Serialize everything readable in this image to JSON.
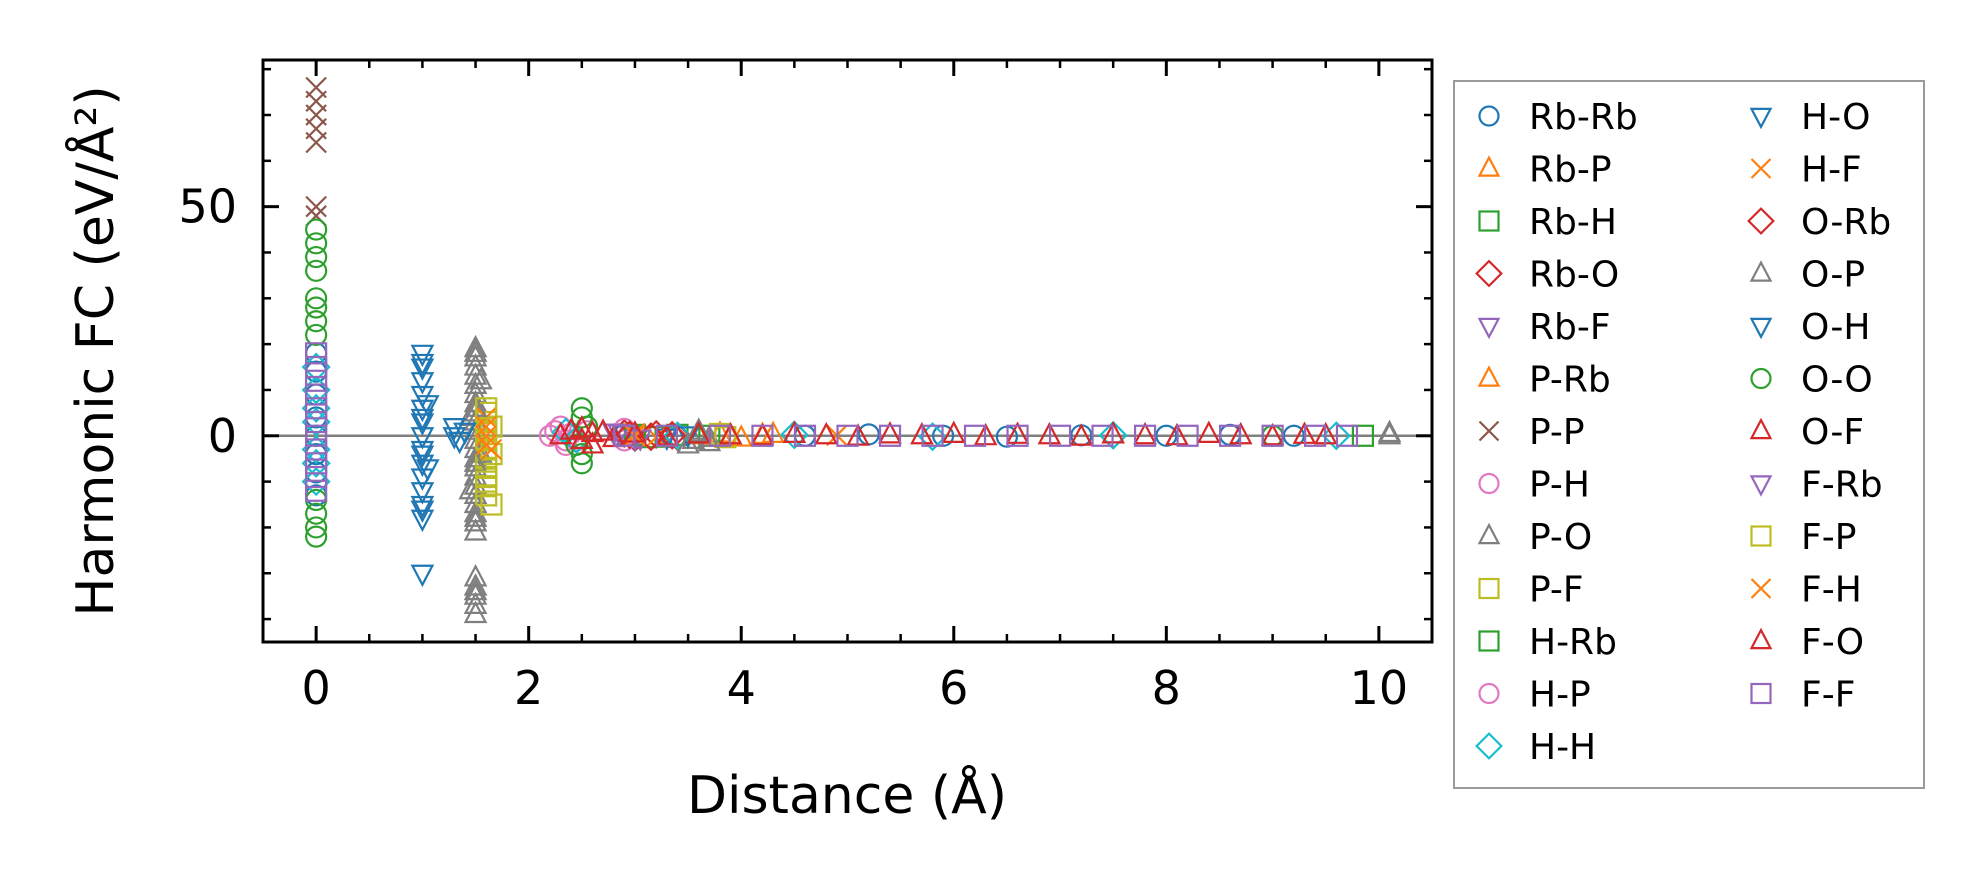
{
  "chart_data": {
    "type": "scatter",
    "xlabel": "Distance (Å)",
    "ylabel": "Harmonic FC (eV/Å²)",
    "xlim": [
      -0.5,
      10.5
    ],
    "ylim": [
      -45,
      82
    ],
    "xticks": [
      0,
      2,
      4,
      6,
      8,
      10
    ],
    "yticks": [
      0,
      50
    ],
    "zero_line": true,
    "grid": false,
    "legend_position": "outside-right",
    "series": [
      {
        "name": "Rb-Rb",
        "marker": "circle",
        "color": "#1f77b4",
        "points": [
          [
            0,
            0
          ],
          [
            0,
            4
          ],
          [
            0,
            -4
          ],
          [
            0,
            9
          ],
          [
            0,
            -8
          ],
          [
            0,
            14
          ],
          [
            0,
            -13
          ],
          [
            0,
            18
          ],
          [
            4.6,
            0
          ],
          [
            5.2,
            0.3
          ],
          [
            5.9,
            0
          ],
          [
            6.5,
            -0.2
          ],
          [
            7.2,
            0.1
          ],
          [
            8.0,
            0
          ],
          [
            8.6,
            0.2
          ],
          [
            9.2,
            0
          ]
        ]
      },
      {
        "name": "Rb-P",
        "marker": "triangle-up",
        "color": "#ff7f0e",
        "points": [
          [
            3.6,
            0
          ],
          [
            3.8,
            0.4
          ],
          [
            4.0,
            -0.5
          ],
          [
            4.3,
            0.3
          ]
        ]
      },
      {
        "name": "Rb-H",
        "marker": "square",
        "color": "#2ca02c",
        "points": [
          [
            2.9,
            0.3
          ],
          [
            3.1,
            -0.3
          ],
          [
            3.4,
            0.2
          ],
          [
            3.7,
            0
          ]
        ]
      },
      {
        "name": "Rb-O",
        "marker": "diamond",
        "color": "#d62728",
        "points": [
          [
            2.9,
            0.5
          ],
          [
            3.0,
            -0.4
          ],
          [
            3.2,
            0.3
          ],
          [
            3.4,
            -0.2
          ]
        ]
      },
      {
        "name": "Rb-F",
        "marker": "triangle-down",
        "color": "#9467bd",
        "points": [
          [
            2.8,
            0.8
          ],
          [
            3.0,
            -0.6
          ],
          [
            3.3,
            0.3
          ]
        ]
      },
      {
        "name": "P-Rb",
        "marker": "triangle-up",
        "color": "#ff7f0e",
        "points": [
          [
            3.6,
            0.2
          ],
          [
            3.9,
            -0.3
          ],
          [
            4.2,
            0.1
          ]
        ]
      },
      {
        "name": "P-P",
        "marker": "x",
        "color": "#8c564b",
        "points": [
          [
            0,
            76
          ],
          [
            0,
            73
          ],
          [
            0,
            70
          ],
          [
            0,
            67
          ],
          [
            0,
            64
          ],
          [
            0,
            50
          ],
          [
            0,
            48
          ]
        ]
      },
      {
        "name": "P-H",
        "marker": "circle",
        "color": "#e377c2",
        "points": [
          [
            2.2,
            0
          ],
          [
            2.3,
            2
          ],
          [
            2.35,
            -2
          ],
          [
            2.4,
            0.5
          ],
          [
            2.45,
            -1
          ],
          [
            2.55,
            1
          ],
          [
            2.9,
            1.5
          ],
          [
            2.9,
            -1
          ]
        ]
      },
      {
        "name": "P-O",
        "marker": "triangle-up",
        "color": "#7f7f7f",
        "points": [
          [
            1.5,
            19
          ],
          [
            1.5,
            17
          ],
          [
            1.5,
            15
          ],
          [
            1.5,
            13
          ],
          [
            1.5,
            11
          ],
          [
            1.5,
            9
          ],
          [
            1.5,
            7
          ],
          [
            1.5,
            5
          ],
          [
            1.5,
            3
          ],
          [
            1.5,
            1
          ],
          [
            1.5,
            -1
          ],
          [
            1.5,
            -3
          ],
          [
            1.5,
            -5
          ],
          [
            1.5,
            -7
          ],
          [
            1.5,
            -9
          ],
          [
            1.5,
            -11
          ],
          [
            1.5,
            -13
          ],
          [
            1.5,
            -15
          ],
          [
            1.5,
            -17
          ],
          [
            1.5,
            -19
          ],
          [
            1.5,
            -21
          ],
          [
            1.5,
            -31
          ],
          [
            1.5,
            -33
          ],
          [
            1.5,
            -35
          ],
          [
            1.5,
            -37
          ],
          [
            1.5,
            -39
          ],
          [
            1.45,
            4
          ],
          [
            1.55,
            -4
          ],
          [
            1.45,
            -12
          ],
          [
            1.55,
            12
          ],
          [
            3.55,
            -1
          ],
          [
            3.6,
            0.5
          ],
          [
            3.7,
            -0.5
          ],
          [
            10.1,
            0.5
          ]
        ]
      },
      {
        "name": "P-F",
        "marker": "square",
        "color": "#bcbd22",
        "points": [
          [
            1.6,
            5
          ],
          [
            1.6,
            3
          ],
          [
            1.6,
            1
          ],
          [
            1.6,
            -1
          ],
          [
            1.6,
            -3
          ],
          [
            1.6,
            -5
          ],
          [
            1.6,
            -7
          ],
          [
            1.6,
            -9
          ],
          [
            1.6,
            -11
          ],
          [
            1.6,
            -13
          ],
          [
            1.65,
            2
          ],
          [
            1.65,
            -4
          ],
          [
            3.8,
            0.4
          ],
          [
            3.85,
            -0.3
          ]
        ]
      },
      {
        "name": "H-Rb",
        "marker": "square",
        "color": "#2ca02c",
        "points": [
          [
            3.0,
            0.2
          ],
          [
            3.3,
            -0.2
          ],
          [
            9.85,
            0
          ]
        ]
      },
      {
        "name": "H-P",
        "marker": "circle",
        "color": "#e377c2",
        "points": [
          [
            2.25,
            1
          ],
          [
            2.35,
            -1
          ],
          [
            2.95,
            0.5
          ]
        ]
      },
      {
        "name": "H-H",
        "marker": "diamond",
        "color": "#17becf",
        "points": [
          [
            0,
            3
          ],
          [
            0,
            -3
          ],
          [
            0,
            6
          ],
          [
            0,
            -6
          ],
          [
            0,
            10
          ],
          [
            0,
            -10
          ],
          [
            0,
            15
          ],
          [
            2.35,
            0.8
          ],
          [
            2.45,
            -0.8
          ],
          [
            3.4,
            0
          ],
          [
            4.5,
            0.2
          ],
          [
            5.8,
            -0.2
          ],
          [
            7.5,
            0.1
          ],
          [
            9.6,
            0
          ]
        ]
      },
      {
        "name": "H-O",
        "marker": "triangle-down",
        "color": "#1f77b4",
        "points": [
          [
            1.0,
            18
          ],
          [
            1.0,
            15
          ],
          [
            1.0,
            12
          ],
          [
            1.0,
            9
          ],
          [
            1.0,
            6
          ],
          [
            1.0,
            3
          ],
          [
            1.0,
            0
          ],
          [
            1.0,
            -3
          ],
          [
            1.0,
            -6
          ],
          [
            1.0,
            -9
          ],
          [
            1.0,
            -12
          ],
          [
            1.0,
            -15
          ],
          [
            1.0,
            -18
          ],
          [
            1.0,
            -30
          ],
          [
            1.05,
            7
          ],
          [
            1.05,
            -7
          ],
          [
            1.3,
            2
          ],
          [
            1.35,
            -1
          ],
          [
            1.4,
            1
          ],
          [
            2.9,
            0.4
          ],
          [
            3.3,
            -0.3
          ],
          [
            3.5,
            0.2
          ]
        ]
      },
      {
        "name": "H-F",
        "marker": "x",
        "color": "#ff7f0e",
        "points": [
          [
            1.6,
            4
          ],
          [
            1.6,
            0
          ],
          [
            1.65,
            -3
          ],
          [
            3.0,
            0.5
          ],
          [
            3.2,
            -0.3
          ],
          [
            4.9,
            0.1
          ]
        ]
      },
      {
        "name": "O-Rb",
        "marker": "diamond",
        "color": "#d62728",
        "points": [
          [
            2.95,
            0.2
          ],
          [
            3.15,
            -0.2
          ],
          [
            3.35,
            0.1
          ]
        ]
      },
      {
        "name": "O-P",
        "marker": "triangle-up",
        "color": "#7f7f7f",
        "points": [
          [
            1.5,
            18
          ],
          [
            1.5,
            6
          ],
          [
            1.5,
            -6
          ],
          [
            1.5,
            -18
          ],
          [
            1.5,
            -34
          ],
          [
            3.5,
            -2
          ],
          [
            3.6,
            1
          ],
          [
            3.7,
            -1.5
          ],
          [
            10.1,
            0
          ]
        ]
      },
      {
        "name": "O-H",
        "marker": "triangle-down",
        "color": "#1f77b4",
        "points": [
          [
            1.0,
            16
          ],
          [
            1.0,
            4
          ],
          [
            1.0,
            -4
          ],
          [
            1.0,
            -16
          ],
          [
            1.3,
            0
          ]
        ]
      },
      {
        "name": "O-O",
        "marker": "circle",
        "color": "#2ca02c",
        "points": [
          [
            0,
            45
          ],
          [
            0,
            42
          ],
          [
            0,
            39
          ],
          [
            0,
            36
          ],
          [
            0,
            30
          ],
          [
            0,
            28
          ],
          [
            0,
            25
          ],
          [
            0,
            22
          ],
          [
            0,
            -14
          ],
          [
            0,
            -17
          ],
          [
            0,
            -20
          ],
          [
            0,
            -22
          ],
          [
            2.5,
            6
          ],
          [
            2.5,
            4
          ],
          [
            2.5,
            -4
          ],
          [
            2.5,
            -6
          ],
          [
            2.55,
            2
          ],
          [
            2.45,
            -2
          ],
          [
            9.0,
            0
          ]
        ]
      },
      {
        "name": "O-F",
        "marker": "triangle-up",
        "color": "#d62728",
        "points": [
          [
            2.4,
            1
          ],
          [
            2.5,
            -1
          ],
          [
            2.6,
            0.5
          ]
        ]
      },
      {
        "name": "F-Rb",
        "marker": "triangle-down",
        "color": "#9467bd",
        "points": [
          [
            2.85,
            0.6
          ],
          [
            3.05,
            -0.5
          ]
        ]
      },
      {
        "name": "F-P",
        "marker": "square",
        "color": "#bcbd22",
        "points": [
          [
            1.6,
            6
          ],
          [
            1.6,
            -10
          ],
          [
            1.65,
            -15
          ],
          [
            3.8,
            0
          ]
        ]
      },
      {
        "name": "F-H",
        "marker": "x",
        "color": "#ff7f0e",
        "points": [
          [
            1.6,
            2
          ],
          [
            1.6,
            -2
          ],
          [
            3.0,
            0
          ]
        ]
      },
      {
        "name": "F-O",
        "marker": "triangle-up",
        "color": "#d62728",
        "points": [
          [
            2.3,
            0
          ],
          [
            2.5,
            1.5
          ],
          [
            2.6,
            -2
          ],
          [
            2.7,
            0.8
          ],
          [
            2.8,
            -0.6
          ],
          [
            3.0,
            0.4
          ],
          [
            3.3,
            -0.3
          ],
          [
            3.6,
            0.2
          ],
          [
            3.9,
            0
          ],
          [
            4.2,
            -0.2
          ],
          [
            4.5,
            0.3
          ],
          [
            4.8,
            0
          ],
          [
            5.1,
            -0.3
          ],
          [
            5.4,
            0.2
          ],
          [
            5.7,
            0
          ],
          [
            6.0,
            0.3
          ],
          [
            6.3,
            -0.2
          ],
          [
            6.6,
            0.1
          ],
          [
            6.9,
            0
          ],
          [
            7.2,
            -0.3
          ],
          [
            7.5,
            0.2
          ],
          [
            7.8,
            0
          ],
          [
            8.1,
            -0.2
          ],
          [
            8.4,
            0.3
          ],
          [
            8.7,
            0
          ],
          [
            9.0,
            -0.2
          ],
          [
            9.3,
            0.1
          ],
          [
            9.5,
            0
          ]
        ]
      },
      {
        "name": "F-F",
        "marker": "square",
        "color": "#9467bd",
        "points": [
          [
            0,
            18
          ],
          [
            0,
            15
          ],
          [
            0,
            12
          ],
          [
            0,
            9
          ],
          [
            0,
            6
          ],
          [
            0,
            3
          ],
          [
            0,
            0
          ],
          [
            0,
            -3
          ],
          [
            0,
            -6
          ],
          [
            0,
            -9
          ],
          [
            0,
            -12
          ],
          [
            2.9,
            0
          ],
          [
            3.3,
            0
          ],
          [
            3.8,
            0
          ],
          [
            4.2,
            0
          ],
          [
            4.6,
            0
          ],
          [
            5.0,
            0
          ],
          [
            5.4,
            0
          ],
          [
            5.8,
            0
          ],
          [
            6.2,
            0
          ],
          [
            6.6,
            0
          ],
          [
            7.0,
            0
          ],
          [
            7.4,
            0
          ],
          [
            7.8,
            0
          ],
          [
            8.2,
            0
          ],
          [
            8.6,
            0
          ],
          [
            9.0,
            0
          ],
          [
            9.4,
            0
          ],
          [
            9.7,
            0
          ]
        ]
      }
    ]
  }
}
